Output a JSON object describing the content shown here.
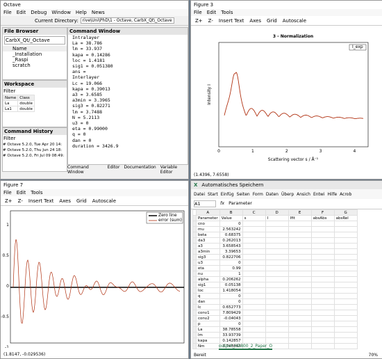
{
  "octave": {
    "title": "Octave",
    "menu": [
      "File",
      "Edit",
      "Debug",
      "Window",
      "Help",
      "News"
    ],
    "current_directory_label": "Current Directory:",
    "current_directory": "rive\\Uni\\PhD\\1 - Octave, CarbX_Qt\\_Octave",
    "file_browser": {
      "title": "File Browser",
      "path": "CarbX_Qt/_Octave",
      "header": "Name",
      "items": [
        "_Installation",
        "_Raspi",
        "scratch"
      ]
    },
    "workspace": {
      "title": "Workspace",
      "filter": "Filter",
      "headers": [
        "Name",
        "Class"
      ],
      "rows": [
        [
          "La",
          "double"
        ],
        [
          "La1",
          "double"
        ]
      ]
    },
    "history": {
      "title": "Command History",
      "filter": "Filter",
      "items": [
        "# Octave 5.2.0, Tue Apr 20 14:",
        "# Octave 5.2.0, Thu Jun 24 18:",
        "# Octave 5.2.0, Fri Jul 09 08:49:"
      ]
    },
    "command_window": {
      "title": "Command Window",
      "lines": [
        "Intralayer",
        "La = 38.786",
        "lm = 33.937",
        "kapa = 0.14286",
        "loc = 1.4181",
        "sig1 = 0.051380",
        "ans =",
        "Interlayer",
        "Lc = 19.066",
        "kapa = 0.39013",
        "a3 = 3.6585",
        "a3min = 3.3965",
        "sig3 = 0.82271",
        "lm = 3.7488",
        "N = 5.2113",
        "u3 = 0",
        "eta = 0.99000",
        "q = 0",
        "dan = 0",
        "duration = 3426.9"
      ]
    },
    "tabs": [
      "Command Window",
      "Editor",
      "Documentation",
      "Variable Editor"
    ]
  },
  "figure3": {
    "title": "Figure 3",
    "menu": [
      "File",
      "Edit",
      "Tools"
    ],
    "toolbar": [
      "Z+",
      "Z-",
      "Insert Text",
      "Axes",
      "Grid",
      "Autoscale"
    ],
    "plot_title": "3 - Normalization",
    "ylabel": "Intensity I",
    "xlabel": "Scattering vector s / Å⁻¹",
    "xticks": [
      "0",
      "1",
      "2",
      "3",
      "4"
    ],
    "legend": "I_exp",
    "status": "(1.4396, 7.6558)"
  },
  "figure7": {
    "title": "Figure 7",
    "menu": [
      "File",
      "Edit",
      "Tools"
    ],
    "toolbar": [
      "Z+",
      "Z-",
      "Insert Text",
      "Axes",
      "Grid",
      "Autoscale"
    ],
    "legend": [
      "Zero line",
      "error (sum)"
    ],
    "yticks": [
      "1",
      "0.5",
      "0",
      "-0.5",
      "-1"
    ],
    "status": "(1.8147, -0.029536)"
  },
  "excel": {
    "autosave": "Automatisches Speichern",
    "menu": [
      "Datei",
      "Start",
      "Einfüg",
      "Seiten",
      "Form",
      "Daten",
      "Überp",
      "Ansich",
      "Entwi",
      "Hilfe",
      "Acrob"
    ],
    "cell": "A1",
    "fx": "fx",
    "formula": "Parameter",
    "columns": [
      "A",
      "B",
      "C",
      "D",
      "E",
      "F",
      "G"
    ],
    "headers": [
      "Parameter",
      "Value",
      "s",
      "I",
      "Ifit",
      "absAbs",
      "absRel"
    ],
    "rows": [
      [
        "cno",
        "0"
      ],
      [
        "mu",
        "2.563242"
      ],
      [
        "beta",
        "0.68375"
      ],
      [
        "da3",
        "0.262013"
      ],
      [
        "a3",
        "3.658543"
      ],
      [
        "a3min",
        "3.39653"
      ],
      [
        "sig3",
        "0.822706"
      ],
      [
        "u3",
        "0"
      ],
      [
        "eta",
        "0.99"
      ],
      [
        "nu",
        "1"
      ],
      [
        "alpha",
        "0.206262"
      ],
      [
        "sig1",
        "0.05138"
      ],
      [
        "loc",
        "1.418054"
      ],
      [
        "q",
        "0"
      ],
      [
        "dan",
        "0"
      ],
      [
        "lc",
        "0.652773"
      ],
      [
        "conv1",
        "7.809429"
      ],
      [
        "conv2",
        "-0.04043"
      ],
      [
        "p",
        "0"
      ],
      [
        "La",
        "38.78558"
      ],
      [
        "lm",
        "33.93739"
      ],
      [
        "kapa",
        "0.142857"
      ],
      [
        "Nm",
        "3.748803"
      ]
    ],
    "sheet": "output_H2800_2_Paper_O",
    "status": "Bereit",
    "zoom": "70%"
  }
}
